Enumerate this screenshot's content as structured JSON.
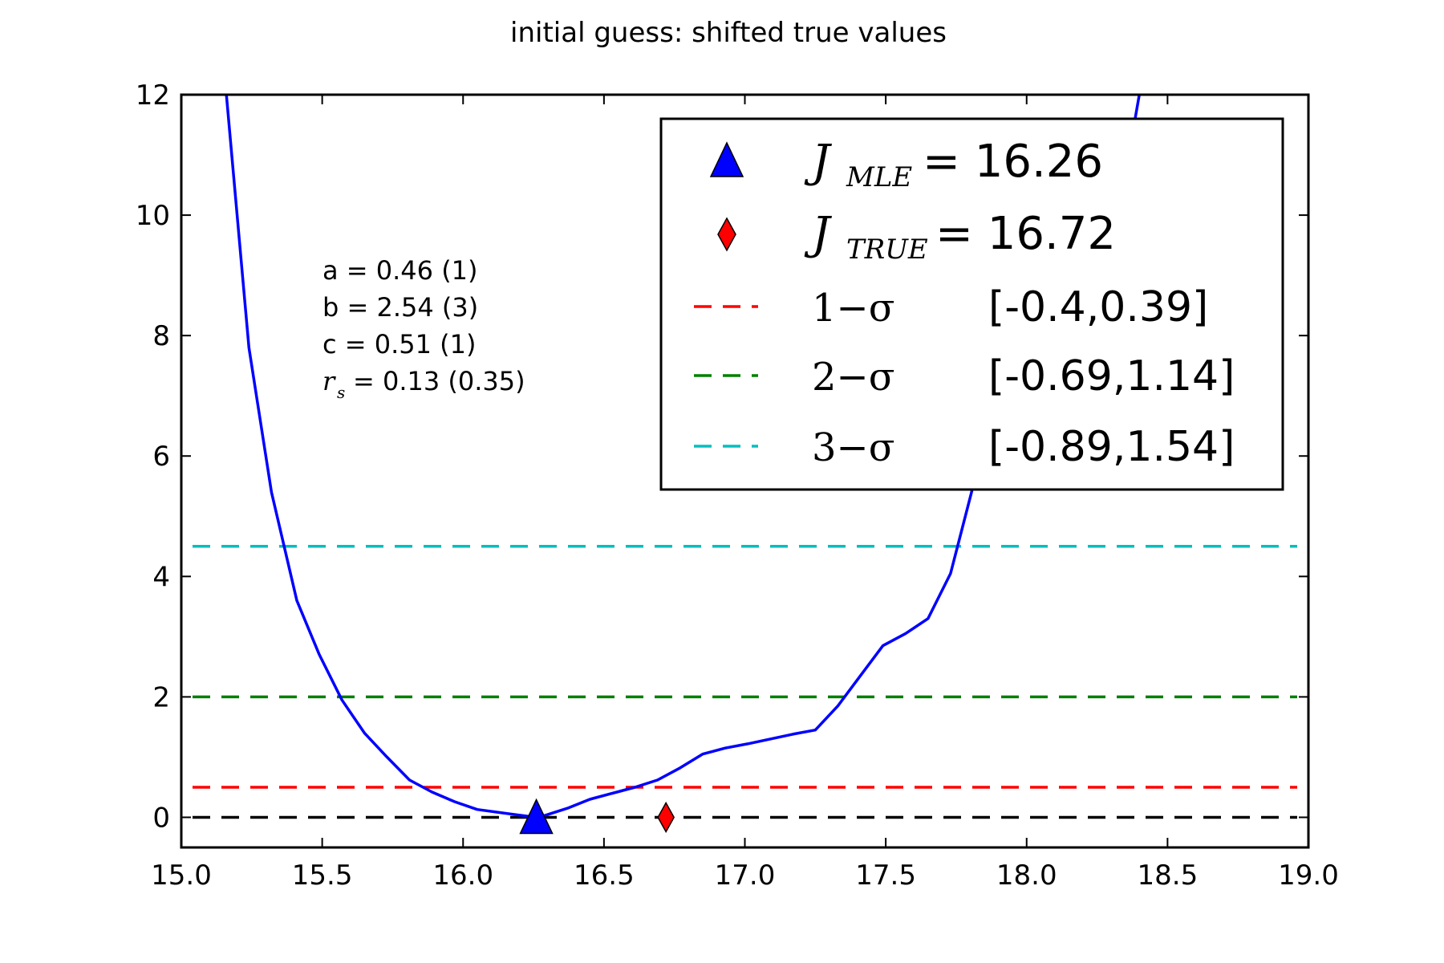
{
  "chart_data": {
    "type": "line",
    "title": "initial guess: shifted true values",
    "xlabel": "",
    "ylabel": "",
    "xlim": [
      15.0,
      19.0
    ],
    "ylim": [
      -0.5,
      12
    ],
    "xticks": [
      "15.0",
      "15.5",
      "16.0",
      "16.5",
      "17.0",
      "17.5",
      "18.0",
      "18.5",
      "19.0"
    ],
    "yticks": [
      "0",
      "2",
      "4",
      "6",
      "8",
      "10",
      "12"
    ],
    "grid": false,
    "legend_position": "top-right",
    "series": [
      {
        "color": "#0000ff",
        "x": [
          15.16,
          15.24,
          15.32,
          15.41,
          15.49,
          15.57,
          15.65,
          15.73,
          15.81,
          15.89,
          15.97,
          16.05,
          16.13,
          16.21,
          16.26,
          16.29,
          16.37,
          16.45,
          16.53,
          16.61,
          16.69,
          16.77,
          16.85,
          16.93,
          17.01,
          17.09,
          17.17,
          17.25,
          17.33,
          17.41,
          17.49,
          17.57,
          17.65,
          17.73,
          17.81,
          17.89,
          17.97,
          18.05,
          18.13,
          18.21,
          18.29,
          18.37,
          18.4
        ],
        "y": [
          12.0,
          7.8,
          5.4,
          3.6,
          2.7,
          1.95,
          1.4,
          1.0,
          0.62,
          0.42,
          0.26,
          0.13,
          0.08,
          0.03,
          0.0,
          0.03,
          0.15,
          0.3,
          0.4,
          0.5,
          0.62,
          0.82,
          1.05,
          1.15,
          1.22,
          1.3,
          1.38,
          1.45,
          1.85,
          2.35,
          2.85,
          3.05,
          3.3,
          4.05,
          5.5,
          7.0,
          8.0,
          8.7,
          9.3,
          9.9,
          10.5,
          11.2,
          12.0
        ]
      }
    ],
    "hlines": [
      {
        "y": 0.0,
        "color": "#000000",
        "style": "dashed"
      },
      {
        "y": 0.5,
        "color": "#ff0000",
        "style": "dashed"
      },
      {
        "y": 2.0,
        "color": "#008000",
        "style": "dashed"
      },
      {
        "y": 4.5,
        "color": "#00bfbf",
        "style": "dashed"
      }
    ],
    "markers": [
      {
        "x": 16.26,
        "y": 0.0,
        "shape": "triangle",
        "color": "#0000ff"
      },
      {
        "x": 16.72,
        "y": 0.0,
        "shape": "diamond",
        "color": "#ff0000"
      }
    ],
    "annotations": [
      "a = 0.46 (1)",
      "b = 2.54 (3)",
      "c = 0.51 (1)",
      " = 0.13 (0.35)"
    ],
    "annotation_symbol": {
      "base": "r",
      "sub": "s"
    },
    "legend": [
      {
        "marker": "triangle",
        "color": "#0000ff",
        "symbol": "J",
        "sub": "MLE",
        "value": " = 16.26"
      },
      {
        "marker": "diamond",
        "color": "#ff0000",
        "symbol": "J",
        "sub": "TRUE",
        "value": " = 16.72"
      },
      {
        "marker": "dashed",
        "color": "#ff0000",
        "sigma": "1−σ",
        "range": "[-0.4,0.39]"
      },
      {
        "marker": "dashed",
        "color": "#008000",
        "sigma": "2−σ",
        "range": "[-0.69,1.14]"
      },
      {
        "marker": "dashed",
        "color": "#00bfbf",
        "sigma": "3−σ",
        "range": "[-0.89,1.54]"
      }
    ]
  }
}
